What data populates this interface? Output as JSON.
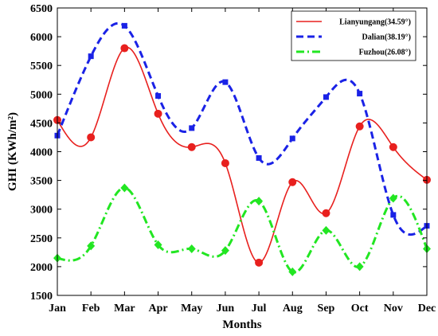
{
  "chart_data": {
    "type": "line",
    "title": "",
    "xlabel": "Months",
    "ylabel": "GHI (KWh/m²)",
    "categories": [
      "Jan",
      "Feb",
      "Mar",
      "Apr",
      "May",
      "Jun",
      "Jul",
      "Aug",
      "Sep",
      "Oct",
      "Nov",
      "Dec"
    ],
    "ylim": [
      1500,
      6500
    ],
    "yticks": [
      1500,
      2000,
      2500,
      3000,
      3500,
      4000,
      4500,
      5000,
      5500,
      6000,
      6500
    ],
    "grid": false,
    "legend_position": "top-right",
    "series": [
      {
        "name": "Lianyungang(34.59°)",
        "color": "#e8201e",
        "line_style": "solid",
        "marker": "circle",
        "values": [
          4550,
          4250,
          5800,
          4660,
          4080,
          3800,
          2070,
          3470,
          2930,
          4440,
          4080,
          3510
        ]
      },
      {
        "name": "Dalian(38.19°)",
        "color": "#1a22e6",
        "line_style": "dashed",
        "marker": "square",
        "values": [
          4280,
          5660,
          6190,
          4970,
          4410,
          5210,
          3890,
          4230,
          4950,
          5010,
          2900,
          2710
        ]
      },
      {
        "name": "Fuzhou(26.08°)",
        "color": "#22e622",
        "line_style": "dashdot",
        "marker": "diamond",
        "values": [
          2150,
          2360,
          3370,
          2380,
          2310,
          2280,
          3140,
          1910,
          2630,
          2000,
          3190,
          2310
        ]
      }
    ]
  }
}
